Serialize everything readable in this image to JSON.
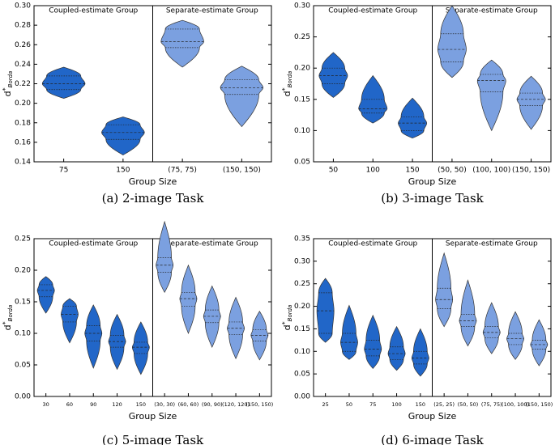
{
  "chart_data": [
    {
      "type": "violin",
      "caption": "(a) 2-image Task",
      "xlabel": "Group Size",
      "ylabel": {
        "text": "d",
        "sup": "*",
        "sub": "Borda"
      },
      "ylim": [
        0.14,
        0.3
      ],
      "yticks": [
        0.14,
        0.16,
        0.18,
        {
          "value": 0.2,
          "label": "0.20"
        },
        0.22,
        0.24,
        0.26,
        0.28,
        {
          "value": 0.3,
          "label": "0.30"
        }
      ],
      "groups": [
        {
          "name": "Coupled-estimate Group",
          "color": "#2166c8",
          "categories": [
            "75",
            "150"
          ],
          "min": [
            0.205,
            0.147
          ],
          "q1": [
            0.214,
            0.163
          ],
          "median": [
            0.22,
            0.17
          ],
          "q3": [
            0.228,
            0.178
          ],
          "max": [
            0.237,
            0.186
          ]
        },
        {
          "name": "Separate-estimate Group",
          "color": "#7ba0e0",
          "categories": [
            "(75, 75)",
            "(150, 150)"
          ],
          "min": [
            0.237,
            0.176
          ],
          "q1": [
            0.257,
            0.209
          ],
          "median": [
            0.263,
            0.216
          ],
          "q3": [
            0.276,
            0.224
          ],
          "max": [
            0.285,
            0.238
          ]
        }
      ]
    },
    {
      "type": "violin",
      "caption": "(b) 3-image Task",
      "xlabel": "Group Size",
      "ylabel": {
        "text": "d",
        "sup": "*",
        "sub": "Borda"
      },
      "ylim": [
        0.05,
        0.3
      ],
      "yticks": [
        0.05,
        {
          "value": 0.1,
          "label": "0.10"
        },
        0.15,
        {
          "value": 0.2,
          "label": "0.20"
        },
        0.25,
        {
          "value": 0.3,
          "label": "0.30"
        }
      ],
      "groups": [
        {
          "name": "Coupled-estimate Group",
          "color": "#2166c8",
          "categories": [
            "50",
            "100",
            "150"
          ],
          "min": [
            0.153,
            0.112,
            0.088
          ],
          "q1": [
            0.175,
            0.128,
            0.1
          ],
          "median": [
            0.188,
            0.135,
            0.112
          ],
          "q3": [
            0.2,
            0.15,
            0.122
          ],
          "max": [
            0.225,
            0.188,
            0.152
          ]
        },
        {
          "name": "Separate-estimate Group",
          "color": "#7ba0e0",
          "categories": [
            "(50, 50)",
            "(100, 100)",
            "(150, 150)"
          ],
          "min": [
            0.185,
            0.1,
            0.102
          ],
          "q1": [
            0.21,
            0.162,
            0.14
          ],
          "median": [
            0.23,
            0.18,
            0.15
          ],
          "q3": [
            0.255,
            0.19,
            0.16
          ],
          "max": [
            0.3,
            0.213,
            0.187
          ]
        }
      ]
    },
    {
      "type": "violin",
      "caption": "(c) 5-image Task",
      "xlabel": "Group Size",
      "ylabel": {
        "text": "d",
        "sup": "*",
        "sub": "Borda"
      },
      "ylim": [
        0,
        0.25
      ],
      "yticks": [
        {
          "value": 0,
          "label": "0.00"
        },
        0.05,
        {
          "value": 0.1,
          "label": "0.10"
        },
        0.15,
        {
          "value": 0.2,
          "label": "0.20"
        },
        0.25
      ],
      "groups": [
        {
          "name": "Coupled-estimate Group",
          "color": "#2166c8",
          "categories": [
            "30",
            "60",
            "90",
            "120",
            "150"
          ],
          "min": [
            0.132,
            0.085,
            0.045,
            0.043,
            0.035
          ],
          "q1": [
            0.158,
            0.118,
            0.088,
            0.078,
            0.068
          ],
          "median": [
            0.168,
            0.13,
            0.1,
            0.087,
            0.078
          ],
          "q3": [
            0.177,
            0.143,
            0.112,
            0.097,
            0.086
          ],
          "max": [
            0.19,
            0.155,
            0.145,
            0.13,
            0.118
          ]
        },
        {
          "name": "Separate-estimate Group",
          "color": "#7ba0e0",
          "categories": [
            "(30, 30)",
            "(60, 60)",
            "(90, 90)",
            "(120, 120)",
            "(150, 150)"
          ],
          "min": [
            0.165,
            0.1,
            0.078,
            0.06,
            0.058
          ],
          "q1": [
            0.197,
            0.143,
            0.117,
            0.098,
            0.088
          ],
          "median": [
            0.208,
            0.155,
            0.127,
            0.108,
            0.097
          ],
          "q3": [
            0.22,
            0.165,
            0.137,
            0.118,
            0.106
          ],
          "max": [
            0.277,
            0.208,
            0.175,
            0.157,
            0.135
          ]
        }
      ]
    },
    {
      "type": "violin",
      "caption": "(d) 6-image Task",
      "xlabel": "Group Size",
      "ylabel": {
        "text": "d",
        "sup": "*",
        "sub": "Borda"
      },
      "ylim": [
        0,
        0.35
      ],
      "yticks": [
        {
          "value": 0,
          "label": "0.00"
        },
        0.05,
        {
          "value": 0.1,
          "label": "0.10"
        },
        0.15,
        {
          "value": 0.2,
          "label": "0.20"
        },
        0.25,
        {
          "value": 0.3,
          "label": "0.30"
        },
        0.35
      ],
      "groups": [
        {
          "name": "Coupled-estimate Group",
          "color": "#2166c8",
          "categories": [
            "25",
            "50",
            "75",
            "100",
            "150"
          ],
          "min": [
            0.12,
            0.082,
            0.062,
            0.058,
            0.045
          ],
          "q1": [
            0.14,
            0.1,
            0.09,
            0.082,
            0.072
          ],
          "median": [
            0.19,
            0.12,
            0.105,
            0.095,
            0.085
          ],
          "q3": [
            0.23,
            0.14,
            0.125,
            0.11,
            0.1
          ],
          "max": [
            0.262,
            0.202,
            0.18,
            0.155,
            0.15
          ]
        },
        {
          "name": "Separate-estimate Group",
          "color": "#7ba0e0",
          "categories": [
            "(25, 25)",
            "(50, 50)",
            "(75, 75)",
            "(100, 100)",
            "(150, 150)"
          ],
          "min": [
            0.155,
            0.112,
            0.095,
            0.082,
            0.068
          ],
          "q1": [
            0.195,
            0.155,
            0.13,
            0.115,
            0.105
          ],
          "median": [
            0.215,
            0.168,
            0.142,
            0.128,
            0.115
          ],
          "q3": [
            0.24,
            0.182,
            0.155,
            0.14,
            0.125
          ],
          "max": [
            0.318,
            0.258,
            0.208,
            0.188,
            0.17
          ]
        }
      ]
    }
  ]
}
